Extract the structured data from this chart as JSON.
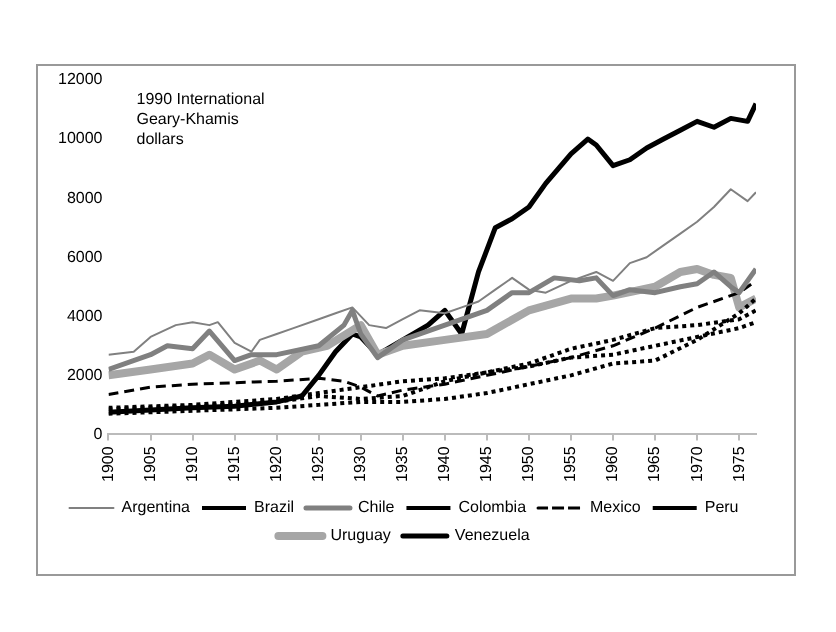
{
  "chart_data": {
    "type": "line",
    "annotations": [
      "1990 International Geary-Khamis dollars"
    ],
    "xlim": [
      1900,
      1977
    ],
    "xticks": [
      1900,
      1905,
      1910,
      1915,
      1920,
      1925,
      1930,
      1935,
      1940,
      1945,
      1950,
      1955,
      1960,
      1965,
      1970,
      1975
    ],
    "ylim": [
      0,
      12000
    ],
    "yticks": [
      0,
      2000,
      4000,
      6000,
      8000,
      10000,
      12000
    ],
    "legend": "bottom",
    "series": [
      {
        "name": "Argentina",
        "color": "#808080",
        "line_style": "solid",
        "x": [
          1900,
          1903,
          1905,
          1908,
          1910,
          1912,
          1913,
          1915,
          1917,
          1918,
          1920,
          1922,
          1925,
          1927,
          1929,
          1931,
          1933,
          1935,
          1937,
          1940,
          1942,
          1944,
          1946,
          1948,
          1950,
          1952,
          1955,
          1958,
          1960,
          1962,
          1964,
          1966,
          1968,
          1970,
          1972,
          1974,
          1976,
          1977
        ],
        "values": [
          2700,
          2800,
          3300,
          3700,
          3800,
          3700,
          3800,
          3100,
          2800,
          3200,
          3400,
          3600,
          3900,
          4100,
          4300,
          3700,
          3600,
          3900,
          4200,
          4100,
          4300,
          4500,
          4900,
          5300,
          4900,
          4800,
          5200,
          5500,
          5200,
          5800,
          6000,
          6400,
          6800,
          7200,
          7700,
          8300,
          7900,
          8200
        ]
      },
      {
        "name": "Brazil",
        "color": "#000000",
        "line_style": "dotted",
        "x": [
          1900,
          1910,
          1920,
          1925,
          1930,
          1935,
          1940,
          1945,
          1950,
          1955,
          1960,
          1965,
          1970,
          1975,
          1977
        ],
        "values": [
          700,
          800,
          900,
          1000,
          1100,
          1100,
          1200,
          1400,
          1700,
          2000,
          2400,
          2500,
          3200,
          4100,
          4600
        ]
      },
      {
        "name": "Chile",
        "color": "#808080",
        "line_style": "solid",
        "x": [
          1900,
          1905,
          1907,
          1910,
          1912,
          1915,
          1917,
          1920,
          1925,
          1928,
          1929,
          1930,
          1932,
          1935,
          1940,
          1945,
          1948,
          1950,
          1953,
          1956,
          1958,
          1960,
          1962,
          1965,
          1968,
          1970,
          1972,
          1974,
          1975,
          1977
        ],
        "values": [
          2200,
          2700,
          3000,
          2900,
          3500,
          2500,
          2700,
          2700,
          3000,
          3700,
          4200,
          3400,
          2600,
          3200,
          3700,
          4200,
          4800,
          4800,
          5300,
          5200,
          5300,
          4700,
          4900,
          4800,
          5000,
          5100,
          5500,
          5000,
          4800,
          5600
        ]
      },
      {
        "name": "Colombia",
        "color": "#000000",
        "line_style": "dotted",
        "x": [
          1900,
          1910,
          1920,
          1925,
          1930,
          1935,
          1940,
          1945,
          1950,
          1955,
          1960,
          1965,
          1970,
          1975,
          1977
        ],
        "values": [
          900,
          1000,
          1200,
          1400,
          1600,
          1800,
          1900,
          2100,
          2300,
          2600,
          2700,
          3000,
          3300,
          3600,
          3800
        ]
      },
      {
        "name": "Mexico",
        "color": "#000000",
        "line_style": "dashed",
        "x": [
          1900,
          1905,
          1910,
          1920,
          1925,
          1928,
          1930,
          1932,
          1935,
          1940,
          1945,
          1950,
          1955,
          1960,
          1965,
          1970,
          1975,
          1977
        ],
        "values": [
          1350,
          1600,
          1700,
          1800,
          1900,
          1800,
          1600,
          1300,
          1500,
          1700,
          2000,
          2300,
          2600,
          3000,
          3600,
          4300,
          4800,
          5200
        ]
      },
      {
        "name": "Peru",
        "color": "#000000",
        "line_style": "dotted",
        "x": [
          1900,
          1910,
          1920,
          1925,
          1930,
          1935,
          1940,
          1945,
          1950,
          1955,
          1960,
          1965,
          1970,
          1975,
          1977
        ],
        "values": [
          850,
          950,
          1100,
          1300,
          1200,
          1300,
          1800,
          2100,
          2400,
          2900,
          3200,
          3600,
          3700,
          3900,
          4200
        ]
      },
      {
        "name": "Uruguay",
        "color": "#a6a6a6",
        "line_style": "solid",
        "x": [
          1900,
          1905,
          1910,
          1912,
          1915,
          1918,
          1920,
          1923,
          1926,
          1930,
          1932,
          1935,
          1940,
          1945,
          1950,
          1955,
          1958,
          1960,
          1965,
          1968,
          1970,
          1972,
          1974,
          1975,
          1977
        ],
        "values": [
          2000,
          2200,
          2400,
          2700,
          2200,
          2500,
          2200,
          2800,
          3000,
          3700,
          2700,
          3000,
          3200,
          3400,
          4200,
          4600,
          4600,
          4700,
          5000,
          5500,
          5600,
          5400,
          5300,
          4300,
          4600
        ]
      },
      {
        "name": "Venezuela",
        "color": "#000000",
        "line_style": "solid",
        "x": [
          1900,
          1910,
          1915,
          1920,
          1923,
          1925,
          1927,
          1929,
          1930,
          1932,
          1935,
          1938,
          1940,
          1942,
          1944,
          1946,
          1948,
          1950,
          1952,
          1955,
          1957,
          1958,
          1960,
          1962,
          1964,
          1966,
          1968,
          1970,
          1972,
          1974,
          1976,
          1977
        ],
        "values": [
          750,
          900,
          950,
          1100,
          1300,
          2000,
          2800,
          3400,
          3300,
          2700,
          3200,
          3700,
          4200,
          3400,
          5500,
          7000,
          7300,
          7700,
          8500,
          9500,
          10000,
          9800,
          9100,
          9300,
          9700,
          10000,
          10300,
          10600,
          10400,
          10700,
          10600,
          11200
        ]
      }
    ]
  }
}
